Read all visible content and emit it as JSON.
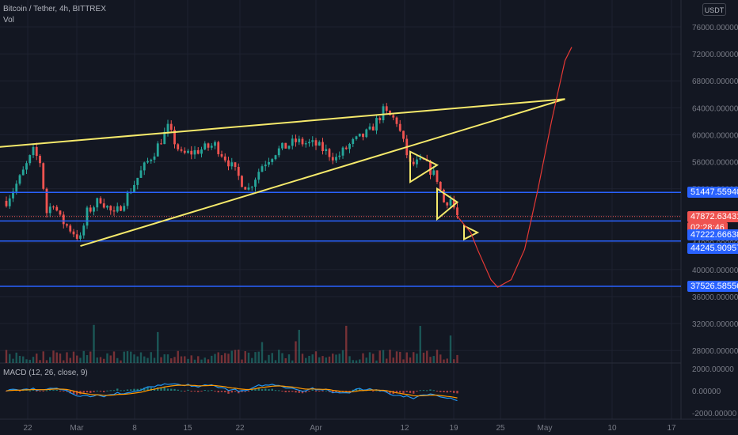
{
  "header": {
    "title": "Bitcoin / Tether, 4h, BITTREX",
    "vol_label": "Vol",
    "currency_button": "USDT"
  },
  "macd": {
    "label": "MACD (12, 26, close, 9)"
  },
  "colors": {
    "background": "#131722",
    "grid": "#1e2230",
    "up": "#26a69a",
    "down": "#ef5350",
    "trendline": "#f5e96b",
    "hline": "#2962ff",
    "forecast": "#e53935",
    "macd_line": "#2196f3",
    "signal_line": "#ff9800"
  },
  "price_axis": [
    "76000.00000",
    "72000.00000",
    "68000.00000",
    "64000.00000",
    "60000.00000",
    "56000.00000",
    "52000.00000",
    "48000.00000",
    "44000.00000",
    "40000.00000",
    "36000.00000",
    "32000.00000",
    "28000.00000"
  ],
  "macd_axis": [
    "2000.00000",
    "0.00000",
    "-2000.00000"
  ],
  "time_axis": [
    "22",
    "Mar",
    "8",
    "15",
    "22",
    "Apr",
    "12",
    "19",
    "25",
    "May",
    "10",
    "17"
  ],
  "price_tags": [
    {
      "text": "51447.55940",
      "kind": "hline"
    },
    {
      "text": "47872.63431",
      "kind": "last"
    },
    {
      "text": "02:28:46",
      "kind": "countdown"
    },
    {
      "text": "47222.66638",
      "kind": "hline"
    },
    {
      "text": "44245.90957",
      "kind": "hline"
    },
    {
      "text": "37526.58556",
      "kind": "hline"
    }
  ],
  "chart_data": {
    "type": "candlestick",
    "title": "Bitcoin / Tether, 4h, BITTREX",
    "y_range": [
      36000,
      76000
    ],
    "x_ticks": [
      "22",
      "Mar",
      "8",
      "15",
      "22",
      "Apr",
      "12",
      "19",
      "25",
      "May",
      "10",
      "17"
    ],
    "close_path": [
      {
        "x": "Feb 17",
        "y": 50200
      },
      {
        "x": "Feb 19",
        "y": 53500
      },
      {
        "x": "Feb 21",
        "y": 57500
      },
      {
        "x": "Feb 22",
        "y": 56000
      },
      {
        "x": "Feb 23",
        "y": 48500
      },
      {
        "x": "Feb 24",
        "y": 50000
      },
      {
        "x": "Feb 25",
        "y": 47500
      },
      {
        "x": "Feb 26",
        "y": 46500
      },
      {
        "x": "Feb 28",
        "y": 44500
      },
      {
        "x": "Mar 1",
        "y": 48500
      },
      {
        "x": "Mar 3",
        "y": 50500
      },
      {
        "x": "Mar 5",
        "y": 48000
      },
      {
        "x": "Mar 7",
        "y": 51000
      },
      {
        "x": "Mar 9",
        "y": 54500
      },
      {
        "x": "Mar 11",
        "y": 57500
      },
      {
        "x": "Mar 13",
        "y": 61000
      },
      {
        "x": "Mar 15",
        "y": 57000
      },
      {
        "x": "Mar 17",
        "y": 57500
      },
      {
        "x": "Mar 20",
        "y": 58500
      },
      {
        "x": "Mar 22",
        "y": 56000
      },
      {
        "x": "Mar 24",
        "y": 53000
      },
      {
        "x": "Mar 25",
        "y": 52000
      },
      {
        "x": "Mar 27",
        "y": 55500
      },
      {
        "x": "Mar 29",
        "y": 57500
      },
      {
        "x": "Apr 1",
        "y": 59000
      },
      {
        "x": "Apr 4",
        "y": 58500
      },
      {
        "x": "Apr 7",
        "y": 56500
      },
      {
        "x": "Apr 9",
        "y": 58500
      },
      {
        "x": "Apr 12",
        "y": 60500
      },
      {
        "x": "Apr 14",
        "y": 63500
      },
      {
        "x": "Apr 16",
        "y": 62000
      },
      {
        "x": "Apr 18",
        "y": 55500
      },
      {
        "x": "Apr 20",
        "y": 56000
      },
      {
        "x": "Apr 22",
        "y": 53500
      },
      {
        "x": "Apr 23",
        "y": 50000
      },
      {
        "x": "Apr 24",
        "y": 50500
      },
      {
        "x": "Apr 25",
        "y": 47900
      }
    ],
    "horizontal_levels": [
      51447.5594,
      47222.66638,
      44245.90957,
      37526.58556
    ],
    "last_price": 47872.63431,
    "trendlines": [
      {
        "from": {
          "x": "Feb 16",
          "y": 58200
        },
        "to": {
          "x": "May 11",
          "y": 65300
        }
      },
      {
        "from": {
          "x": "Feb 28",
          "y": 43500
        },
        "to": {
          "x": "May 11",
          "y": 65300
        }
      }
    ],
    "triangles": [
      [
        {
          "x": "Apr 18",
          "y": 57500
        },
        {
          "x": "Apr 22",
          "y": 55500
        },
        {
          "x": "Apr 18",
          "y": 53000
        }
      ],
      [
        {
          "x": "Apr 22",
          "y": 52000
        },
        {
          "x": "Apr 25",
          "y": 50000
        },
        {
          "x": "Apr 22",
          "y": 47500
        }
      ],
      [
        {
          "x": "Apr 26",
          "y": 46500
        },
        {
          "x": "Apr 28",
          "y": 45500
        },
        {
          "x": "Apr 26",
          "y": 44500
        }
      ]
    ],
    "forecast_path": [
      {
        "x": "Apr 25",
        "y": 47900
      },
      {
        "x": "Apr 27",
        "y": 45500
      },
      {
        "x": "Apr 28",
        "y": 43000
      },
      {
        "x": "Apr 30",
        "y": 38500
      },
      {
        "x": "May 1",
        "y": 37400
      },
      {
        "x": "May 3",
        "y": 38500
      },
      {
        "x": "May 5",
        "y": 43000
      },
      {
        "x": "May 7",
        "y": 52000
      },
      {
        "x": "May 9",
        "y": 62000
      },
      {
        "x": "May 11",
        "y": 71000
      },
      {
        "x": "May 12",
        "y": 73000
      }
    ],
    "volume_range": [
      26000,
      36000
    ],
    "macd_range": [
      -2600,
      2600
    ]
  }
}
